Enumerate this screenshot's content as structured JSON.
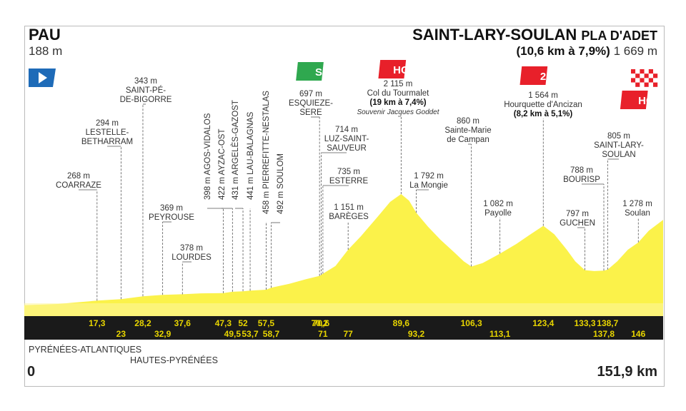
{
  "start": {
    "name": "PAU",
    "altitude": "188 m"
  },
  "finish": {
    "name": "SAINT-LARY-SOULAN",
    "sub": "PLA D'ADET",
    "climb": "(10,6 km à 7,9%)",
    "altitude": "1 669 m"
  },
  "axis": {
    "start": "0",
    "end": "151,9 km"
  },
  "departments": [
    "PYRÉNÉES-ATLANTIQUES",
    "HAUTES-PYRÉNÉES"
  ],
  "colors": {
    "profile_fill": "#fbf24a",
    "profile_fill_light": "#fdf6a0",
    "km_bar": "#1a1a1a",
    "km_text": "#e8d500",
    "climb_badge": "#e8202a",
    "sprint_badge": "#2fa84f",
    "start_flag": "#1e6bb8"
  },
  "icons": {
    "start": "start-flag-icon",
    "sprint": "intermediate-sprint-icon",
    "climb": "mountain-climb-icon",
    "finish": "finish-flag-icon"
  },
  "chart_data": {
    "type": "area",
    "title": "",
    "xlabel": "",
    "ylabel": "",
    "xlim": [
      0,
      151.9
    ],
    "ylim": [
      0,
      2300
    ],
    "profile": [
      [
        0,
        188
      ],
      [
        8,
        210
      ],
      [
        17.3,
        268
      ],
      [
        23,
        294
      ],
      [
        28.2,
        343
      ],
      [
        32.9,
        369
      ],
      [
        37.6,
        378
      ],
      [
        42,
        395
      ],
      [
        47.3,
        398
      ],
      [
        49.5,
        422
      ],
      [
        52,
        431
      ],
      [
        53.7,
        441
      ],
      [
        57.5,
        458
      ],
      [
        58.7,
        492
      ],
      [
        63,
        560
      ],
      [
        67,
        640
      ],
      [
        70.2,
        697
      ],
      [
        70.6,
        714
      ],
      [
        71,
        735
      ],
      [
        74,
        870
      ],
      [
        77,
        1151
      ],
      [
        80,
        1380
      ],
      [
        84,
        1720
      ],
      [
        87,
        1980
      ],
      [
        89.6,
        2115
      ],
      [
        91.5,
        2000
      ],
      [
        93.2,
        1792
      ],
      [
        96,
        1550
      ],
      [
        99,
        1320
      ],
      [
        102,
        1120
      ],
      [
        104.5,
        950
      ],
      [
        106.3,
        860
      ],
      [
        109,
        920
      ],
      [
        113.1,
        1082
      ],
      [
        117,
        1250
      ],
      [
        120,
        1400
      ],
      [
        123.4,
        1564
      ],
      [
        126,
        1420
      ],
      [
        129,
        1150
      ],
      [
        131,
        950
      ],
      [
        133.3,
        797
      ],
      [
        135.5,
        780
      ],
      [
        137.8,
        788
      ],
      [
        138.7,
        805
      ],
      [
        141,
        950
      ],
      [
        143.5,
        1150
      ],
      [
        146,
        1278
      ],
      [
        148.5,
        1480
      ],
      [
        151.9,
        1669
      ]
    ],
    "annotations": [
      {
        "km": 17.3,
        "altitude": "268 m",
        "lines": [
          "COARRAZE"
        ]
      },
      {
        "km": 23,
        "altitude": "294 m",
        "lines": [
          "LESTELLE-",
          "BETHARRAM"
        ]
      },
      {
        "km": 28.2,
        "altitude": "343 m",
        "lines": [
          "SAINT-PÉ-",
          "DE-BIGORRE"
        ]
      },
      {
        "km": 32.9,
        "altitude": "369 m",
        "lines": [
          "PEYROUSE"
        ]
      },
      {
        "km": 37.6,
        "altitude": "378 m",
        "lines": [
          "LOURDES"
        ]
      },
      {
        "km": 47.3,
        "text": "398 m AGOS-VIDALOS"
      },
      {
        "km": 49.5,
        "text": "422 m AYZAC-OST"
      },
      {
        "km": 52,
        "text": "431 m ARGELÈS-GAZOST"
      },
      {
        "km": 53.7,
        "text": "441 m LAU-BALAGNAS"
      },
      {
        "km": 57.5,
        "text": "458 m PIERREFITTE-NESTALAS"
      },
      {
        "km": 58.7,
        "text": "492 m SOULOM"
      },
      {
        "km": 70.2,
        "altitude": "697 m",
        "lines": [
          "ESQUIEZE-",
          "SERE"
        ],
        "badge": "S"
      },
      {
        "km": 70.6,
        "altitude": "714 m",
        "lines": [
          "LUZ-SAINT-",
          "SAUVEUR"
        ]
      },
      {
        "km": 71,
        "altitude": "735 m",
        "lines": [
          "ESTERRE"
        ]
      },
      {
        "km": 77,
        "altitude": "1 151 m",
        "lines": [
          "BARÈGES"
        ]
      },
      {
        "km": 89.6,
        "altitude": "2 115 m",
        "lines": [
          "Col du Tourmalet",
          "(19 km à 7,4%)",
          "Souvenir Jacques Goddet"
        ],
        "badge": "HC"
      },
      {
        "km": 93.2,
        "altitude": "1 792 m",
        "lines": [
          "La Mongie"
        ]
      },
      {
        "km": 106.3,
        "altitude": "860 m",
        "lines": [
          "Sainte-Marie",
          "de Campan"
        ]
      },
      {
        "km": 113.1,
        "altitude": "1 082 m",
        "lines": [
          "Payolle"
        ]
      },
      {
        "km": 123.4,
        "altitude": "1 564 m",
        "lines": [
          "Hourquette d'Ancizan",
          "(8,2 km à 5,1%)"
        ],
        "badge": "2"
      },
      {
        "km": 133.3,
        "altitude": "797 m",
        "lines": [
          "GUCHEN"
        ]
      },
      {
        "km": 137.8,
        "altitude": "788 m",
        "lines": [
          "BOURISP"
        ]
      },
      {
        "km": 138.7,
        "altitude": "805 m",
        "lines": [
          "SAINT-LARY-",
          "SOULAN"
        ]
      },
      {
        "km": 146,
        "altitude": "1 278 m",
        "lines": [
          "Soulan"
        ]
      },
      {
        "km": 151.9,
        "badge": "HC"
      }
    ],
    "km_markers_top": [
      "17,3",
      "28,2",
      "37,6",
      "47,3",
      "52",
      "57,5",
      "70,2",
      "70,6",
      "89,6",
      "106,3",
      "123,4",
      "133,3",
      "138,7"
    ],
    "km_markers_bottom": [
      "23",
      "32,9",
      "49,5",
      "53,7",
      "58,7",
      "71",
      "77",
      "93,2",
      "113,1",
      "137,8",
      "146"
    ]
  }
}
